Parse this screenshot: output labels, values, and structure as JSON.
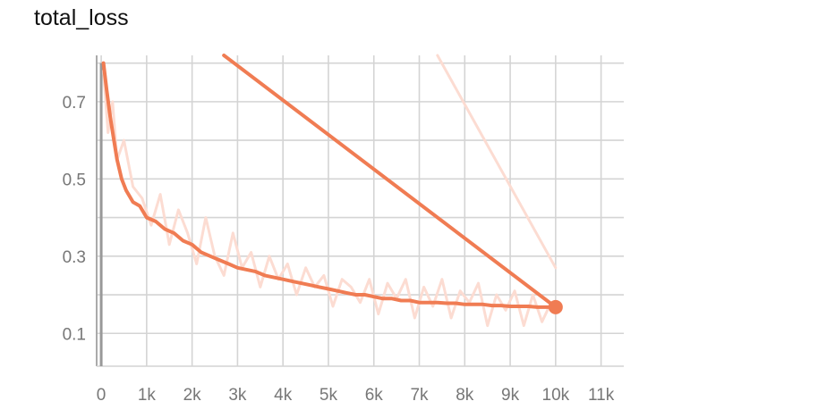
{
  "title": "total_loss",
  "chart_data": {
    "type": "line",
    "title": "total_loss",
    "xlabel": "",
    "ylabel": "",
    "xlim": [
      -100,
      11500
    ],
    "ylim": [
      0.015,
      0.82
    ],
    "x_ticks": [
      0,
      1000,
      2000,
      3000,
      4000,
      5000,
      6000,
      7000,
      8000,
      9000,
      10000,
      11000
    ],
    "x_tick_labels": [
      "0",
      "1k",
      "2k",
      "3k",
      "4k",
      "5k",
      "6k",
      "7k",
      "8k",
      "9k",
      "10k",
      "11k"
    ],
    "y_ticks": [
      0.1,
      0.3,
      0.5,
      0.7
    ],
    "y_tick_labels": [
      "0.1",
      "0.3",
      "0.5",
      "0.7"
    ],
    "grid": true,
    "legend": false,
    "colors": {
      "smoothed": "#f07c53",
      "raw": "#fcdcd2",
      "grid": "#d4d4d4",
      "axis": "#aaaaaa"
    },
    "series": [
      {
        "role": "raw",
        "x": [
          50,
          150,
          250,
          350,
          500,
          700,
          900,
          1100,
          1300,
          1500,
          1700,
          1900,
          2100,
          2300,
          2500,
          2700,
          2900,
          3100,
          3300,
          3500,
          3700,
          3900,
          4100,
          4300,
          4500,
          4700,
          4900,
          5100,
          5300,
          5500,
          5700,
          5900,
          6100,
          6300,
          6500,
          6700,
          6900,
          7100,
          7300,
          7500,
          7700,
          7900,
          8100,
          8300,
          8500,
          8700,
          8900,
          9100,
          9300,
          9500,
          9700,
          9900,
          10000
        ],
        "y": [
          0.78,
          0.62,
          0.7,
          0.55,
          0.6,
          0.48,
          0.45,
          0.38,
          0.46,
          0.33,
          0.42,
          0.36,
          0.28,
          0.4,
          0.3,
          0.25,
          0.36,
          0.27,
          0.31,
          0.22,
          0.3,
          0.24,
          0.28,
          0.2,
          0.27,
          0.22,
          0.25,
          0.17,
          0.24,
          0.22,
          0.18,
          0.24,
          0.15,
          0.23,
          0.19,
          0.24,
          0.14,
          0.22,
          0.17,
          0.24,
          0.14,
          0.21,
          0.18,
          0.23,
          0.12,
          0.2,
          0.16,
          0.21,
          0.12,
          0.2,
          0.13,
          0.18,
          0.17
        ]
      },
      {
        "role": "smoothed",
        "x": [
          50,
          120,
          200,
          280,
          350,
          450,
          550,
          700,
          850,
          1000,
          1200,
          1400,
          1600,
          1800,
          2000,
          2200,
          2400,
          2600,
          2800,
          3000,
          3200,
          3400,
          3600,
          3800,
          4000,
          4200,
          4400,
          4600,
          4800,
          5000,
          5200,
          5400,
          5600,
          5800,
          6000,
          6200,
          6400,
          6600,
          6800,
          7000,
          7200,
          7400,
          7600,
          7800,
          8000,
          8200,
          8400,
          8600,
          8800,
          9000,
          9200,
          9400,
          9600,
          9800,
          10000
        ],
        "y": [
          0.8,
          0.73,
          0.66,
          0.6,
          0.55,
          0.5,
          0.47,
          0.44,
          0.43,
          0.4,
          0.39,
          0.37,
          0.36,
          0.34,
          0.33,
          0.31,
          0.3,
          0.29,
          0.28,
          0.27,
          0.265,
          0.26,
          0.25,
          0.245,
          0.24,
          0.235,
          0.23,
          0.225,
          0.22,
          0.215,
          0.21,
          0.205,
          0.2,
          0.2,
          0.195,
          0.19,
          0.19,
          0.185,
          0.185,
          0.18,
          0.18,
          0.18,
          0.178,
          0.178,
          0.175,
          0.175,
          0.175,
          0.172,
          0.172,
          0.17,
          0.17,
          0.17,
          0.168,
          0.168,
          0.168
        ]
      },
      {
        "role": "smoothed",
        "x": [
          2700,
          10000
        ],
        "y": [
          0.82,
          0.168
        ]
      },
      {
        "role": "raw",
        "x": [
          7400,
          10000
        ],
        "y": [
          0.82,
          0.27
        ]
      }
    ],
    "end_marker": {
      "x": 10000,
      "y": 0.168
    }
  }
}
